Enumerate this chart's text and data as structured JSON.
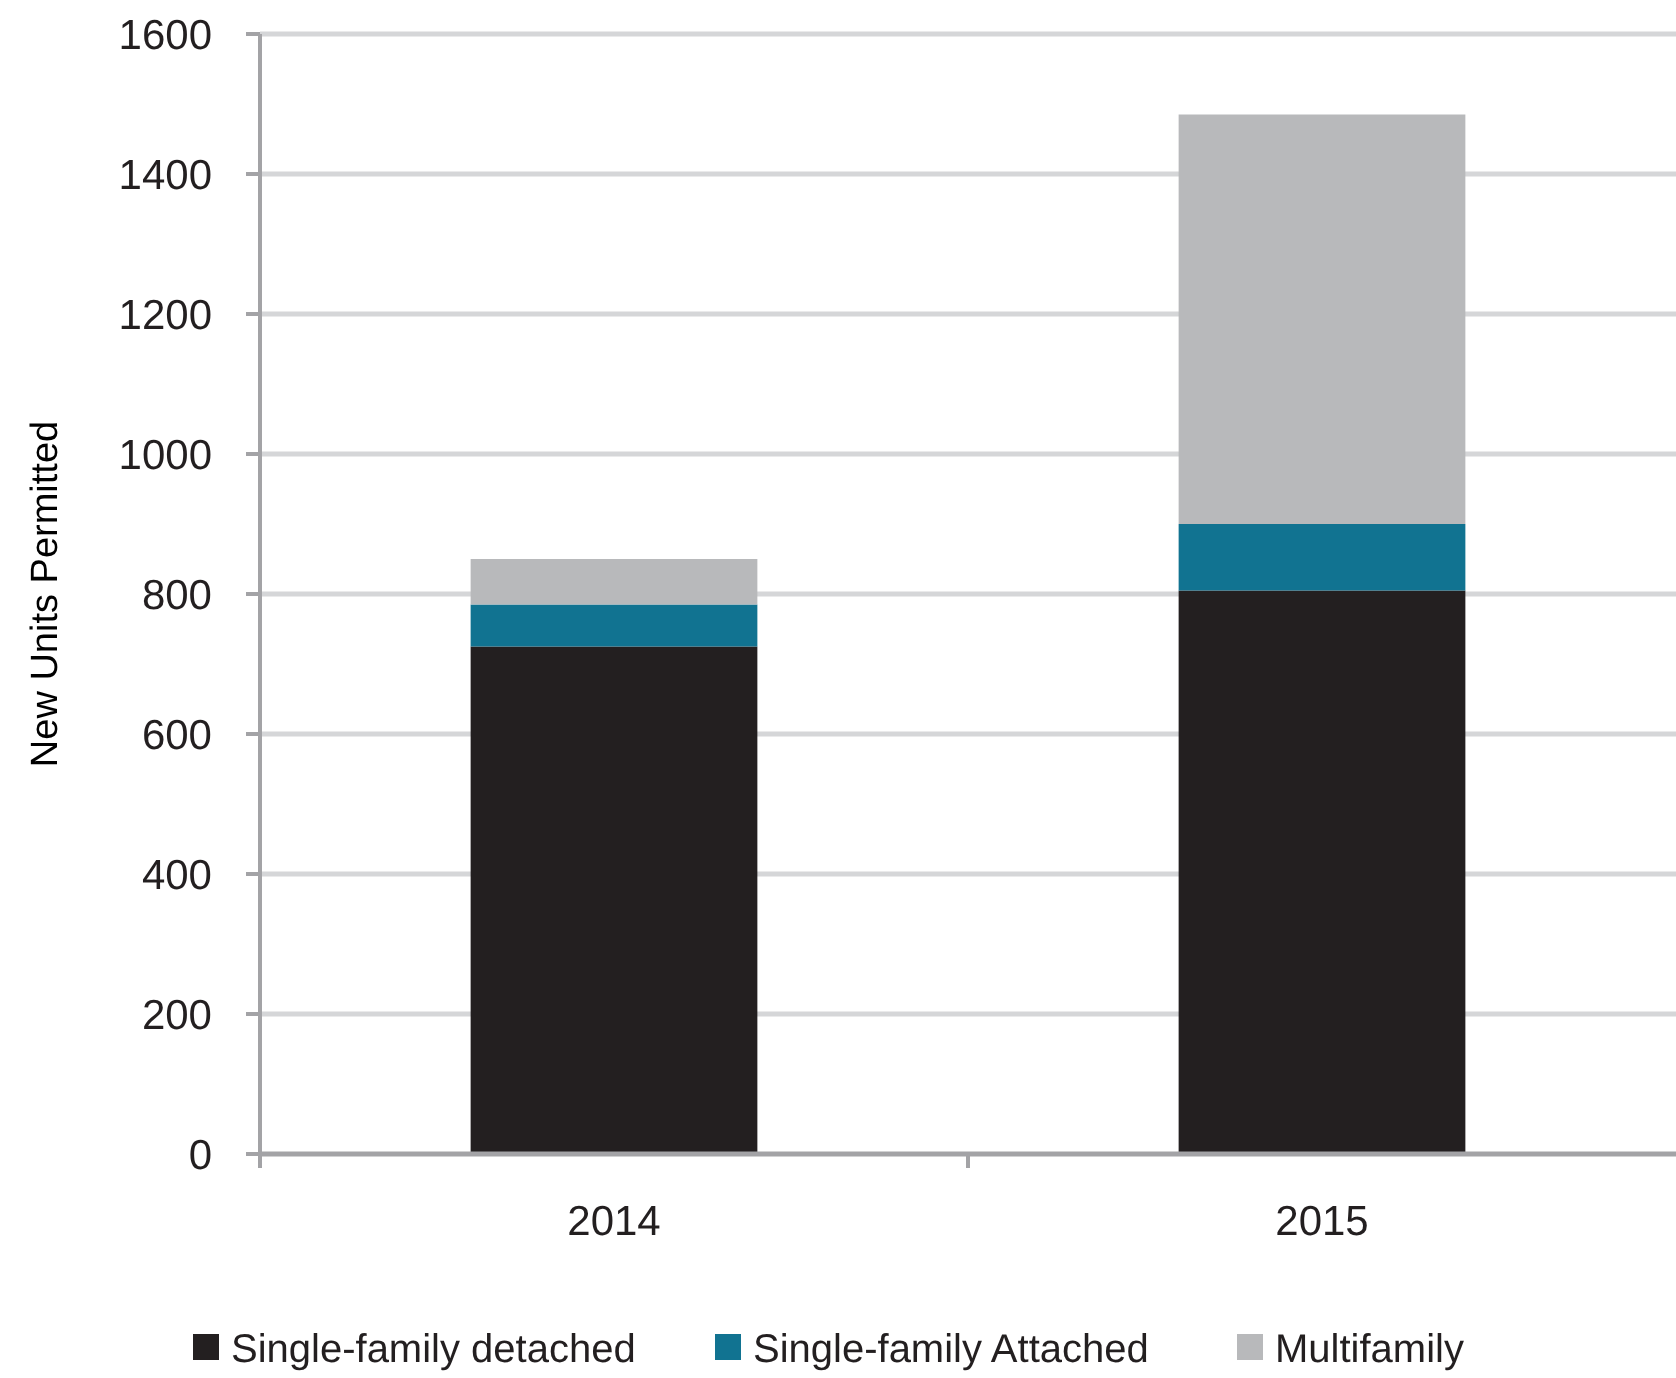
{
  "chart_data": {
    "type": "bar",
    "categories": [
      "2014",
      "2015"
    ],
    "series": [
      {
        "name": "Single-family detached",
        "color": "#231f20",
        "values": [
          725,
          805
        ]
      },
      {
        "name": "Single-family Attached",
        "color": "#117391",
        "values": [
          60,
          95
        ]
      },
      {
        "name": "Multifamily",
        "color": "#b8b9bb",
        "values": [
          65,
          585
        ]
      }
    ],
    "stacked": true,
    "ylabel": "New Units Permitted",
    "ylim": [
      0,
      1600
    ],
    "yticks": [
      0,
      200,
      400,
      600,
      800,
      1000,
      1200,
      1400,
      1600
    ],
    "grid": "y",
    "legend": "bottom"
  }
}
